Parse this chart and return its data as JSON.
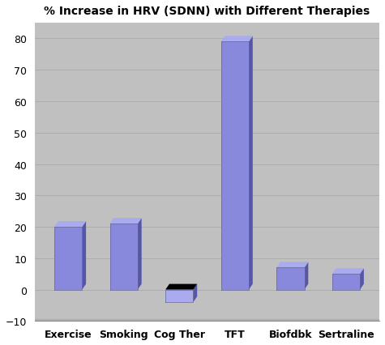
{
  "title": "% Increase in HRV (SDNN) with Different Therapies",
  "categories": [
    "Exercise",
    "Smoking",
    "Cog Ther",
    "TFT",
    "Biofdbk",
    "Sertraline"
  ],
  "values": [
    20,
    21,
    -4,
    79,
    7,
    5
  ],
  "bar_face_color": "#8888dd",
  "bar_right_color": "#5555aa",
  "bar_top_color": "#aaaaee",
  "neg_bar_face_color": "#aaaaee",
  "neg_bar_top_color": "#000000",
  "ylim": [
    -10,
    85
  ],
  "yticks": [
    -10,
    0,
    10,
    20,
    30,
    40,
    50,
    60,
    70,
    80
  ],
  "plot_bg_color": "#c0c0c0",
  "fig_bg_color": "#ffffff",
  "title_fontsize": 10,
  "tick_fontsize": 9,
  "grid_color": "#aaaaaa",
  "axis_color": "#888888"
}
